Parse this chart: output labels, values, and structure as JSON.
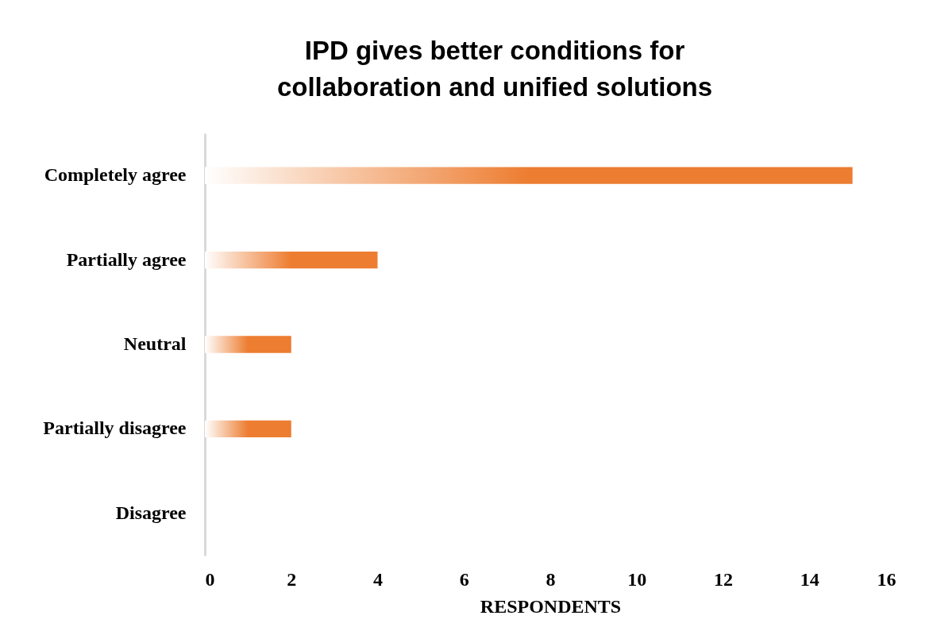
{
  "chart_data": {
    "type": "bar",
    "orientation": "horizontal",
    "title": "IPD gives better conditions for collaboration and unified solutions",
    "xlabel": "RESPONDENTS",
    "categories": [
      "Completely agree",
      "Partially agree",
      "Neutral",
      "Partially disagree",
      "Disagree"
    ],
    "values": [
      15,
      4,
      2,
      2,
      0
    ],
    "color": "#ed7d31",
    "xlim": [
      0,
      16
    ],
    "xticks": [
      0,
      2,
      4,
      6,
      8,
      10,
      12,
      14,
      16
    ],
    "grid": false
  }
}
